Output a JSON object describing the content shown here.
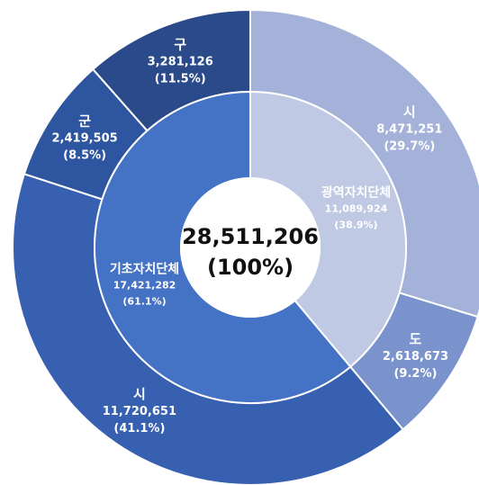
{
  "chart_data": {
    "type": "pie",
    "variant": "sunburst",
    "total": {
      "value": "28,511,206",
      "percent": "(100%)"
    },
    "inner_ring": [
      {
        "name": "광역자치단체",
        "value": 11089924,
        "value_label": "11,089,924",
        "percent_label": "(38.9%)",
        "color": "#c0c9e3",
        "text_color": "#ffffff"
      },
      {
        "name": "기초자치단체",
        "value": 17421282,
        "value_label": "17,421,282",
        "percent_label": "(61.1%)",
        "color": "#4472c4",
        "text_color": "#ffffff"
      }
    ],
    "outer_ring": [
      {
        "name": "시",
        "parent": "광역자치단체",
        "value": 8471251,
        "value_label": "8,471,251",
        "percent_label": "(29.7%)",
        "color": "#a4b2d9"
      },
      {
        "name": "도",
        "parent": "광역자치단체",
        "value": 2618673,
        "value_label": "2,618,673",
        "percent_label": "(9.2%)",
        "color": "#7a93cd"
      },
      {
        "name": "시",
        "parent": "기초자치단체",
        "value": 11720651,
        "value_label": "11,720,651",
        "percent_label": "(41.1%)",
        "color": "#3760b0"
      },
      {
        "name": "군",
        "parent": "기초자치단체",
        "value": 2419505,
        "value_label": "2,419,505",
        "percent_label": "(8.5%)",
        "color": "#2e559f"
      },
      {
        "name": "구",
        "parent": "기초자치단체",
        "value": 3281126,
        "value_label": "3,281,126",
        "percent_label": "(11.5%)",
        "color": "#2a4a8a"
      }
    ],
    "label_color": "#ffffff",
    "center_text_color": "#111111",
    "start_angle": "12 o'clock",
    "direction": "clockwise",
    "legend": "none"
  }
}
